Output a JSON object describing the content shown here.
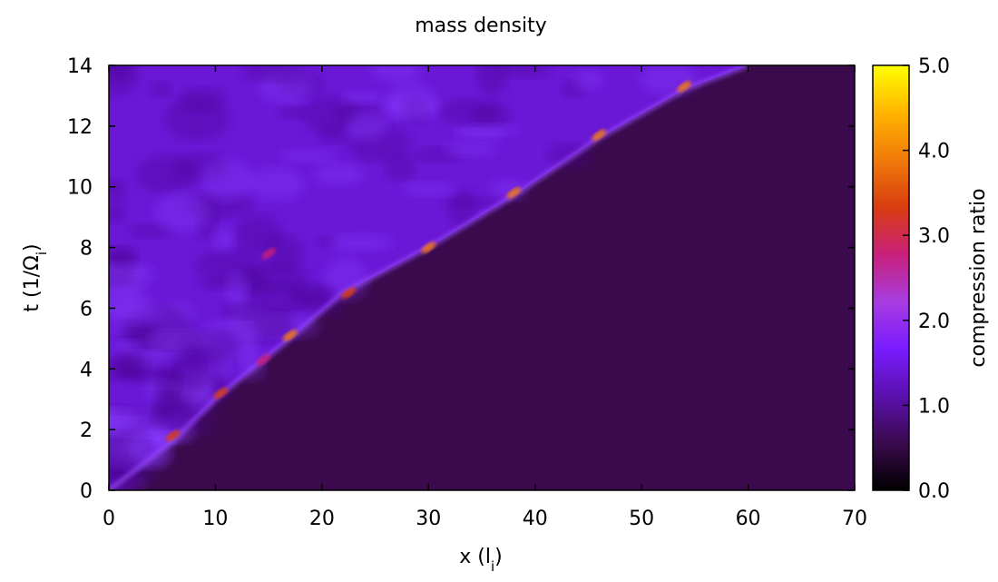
{
  "chart_data": {
    "type": "heatmap",
    "title": "mass density",
    "xlabel": {
      "main": "x (l",
      "sub": "i",
      "close": ")"
    },
    "ylabel": {
      "main": "t (1/Ω",
      "sub": "i",
      "close": ")"
    },
    "xlim": [
      0,
      70
    ],
    "ylim": [
      0,
      14
    ],
    "xticks": [
      "0",
      "10",
      "20",
      "30",
      "40",
      "50",
      "60",
      "70"
    ],
    "yticks": [
      "0",
      "2",
      "4",
      "6",
      "8",
      "10",
      "12",
      "14"
    ],
    "colorbar": {
      "label": "compression ratio",
      "range": [
        0.0,
        5.0
      ],
      "ticks": [
        "0.0",
        "1.0",
        "2.0",
        "3.0",
        "4.0",
        "5.0"
      ],
      "colormap": [
        "#000000",
        "#3a0a4d",
        "#5b10ad",
        "#7a1cff",
        "#a83ce0",
        "#c8207a",
        "#d93d10",
        "#f07a0a",
        "#ffb400",
        "#ffff00"
      ]
    },
    "background_value": 0.3,
    "shock_front": [
      {
        "x": 0,
        "t": 0
      },
      {
        "x": 6,
        "t": 1.6
      },
      {
        "x": 10,
        "t": 3.0
      },
      {
        "x": 17,
        "t": 5.0
      },
      {
        "x": 22,
        "t": 6.5
      },
      {
        "x": 30,
        "t": 8.0
      },
      {
        "x": 38,
        "t": 9.7
      },
      {
        "x": 46,
        "t": 11.6
      },
      {
        "x": 54,
        "t": 13.2
      },
      {
        "x": 60,
        "t": 14.0
      }
    ],
    "hot_spots": [
      {
        "x": 6,
        "t": 1.8,
        "value": 3.6
      },
      {
        "x": 10.5,
        "t": 3.2,
        "value": 3.2
      },
      {
        "x": 14.5,
        "t": 4.3,
        "value": 3.0
      },
      {
        "x": 17,
        "t": 5.1,
        "value": 3.8
      },
      {
        "x": 22.5,
        "t": 6.5,
        "value": 3.6
      },
      {
        "x": 30,
        "t": 8.0,
        "value": 3.7
      },
      {
        "x": 15,
        "t": 7.8,
        "value": 2.8
      },
      {
        "x": 38,
        "t": 9.8,
        "value": 3.9
      },
      {
        "x": 46,
        "t": 11.7,
        "value": 3.9
      },
      {
        "x": 54,
        "t": 13.3,
        "value": 3.8
      }
    ]
  }
}
